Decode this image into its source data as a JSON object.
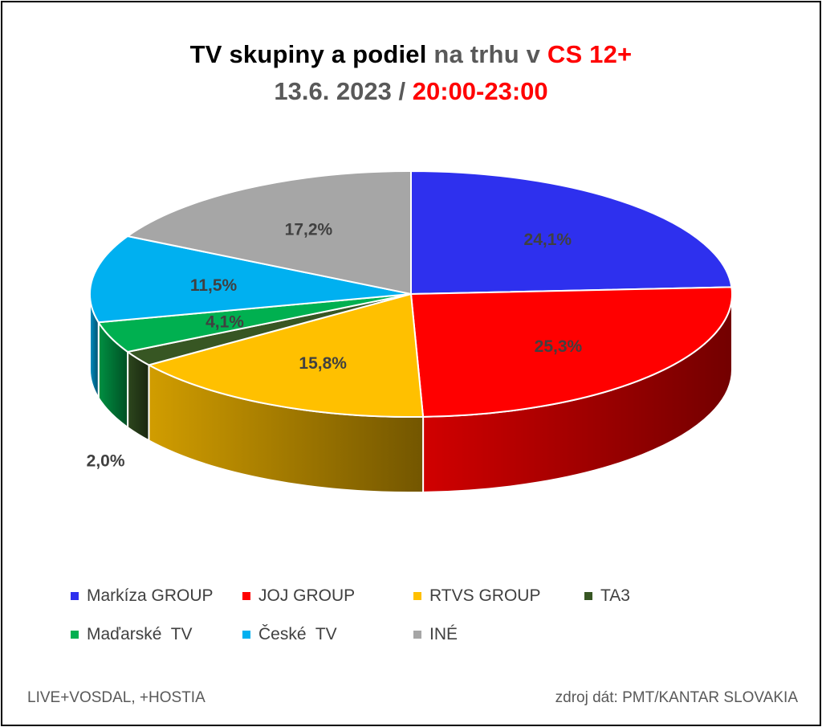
{
  "title": {
    "part1": "TV skupiny a podiel",
    "part2": " na trhu v ",
    "part3": "CS 12+"
  },
  "subtitle": {
    "part1": "13.6. 2023 / ",
    "part2": "20:00-23:00"
  },
  "chart_data": {
    "type": "pie",
    "style": "3d",
    "unit": "%",
    "categories": [
      "Markíza GROUP",
      "JOJ GROUP",
      "RTVS GROUP",
      "TA3",
      "Maďarské  TV",
      "České  TV",
      "INÉ"
    ],
    "values": [
      24.1,
      25.3,
      15.8,
      2.0,
      4.1,
      11.5,
      17.2
    ],
    "labels": [
      "24,1%",
      "25,3%",
      "15,8%",
      "2,0%",
      "4,1%",
      "11,5%",
      "17,2%"
    ],
    "colors": [
      "#2e30ee",
      "#ff0000",
      "#ffc000",
      "#375623",
      "#00b050",
      "#00b0f0",
      "#a6a6a6"
    ],
    "legend_position": "bottom"
  },
  "footer": {
    "left": "LIVE+VOSDAL, +HOSTIA",
    "right": "zdroj dát: PMT/KANTAR SLOVAKIA"
  }
}
